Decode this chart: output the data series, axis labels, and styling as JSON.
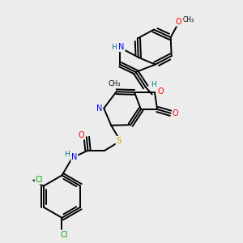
{
  "background_color": "#ececec",
  "figure_size": [
    3.0,
    3.0
  ],
  "dpi": 100,
  "atom_colors": {
    "N": "#0000ff",
    "O": "#ff0000",
    "S": "#ccaa00",
    "Cl": "#00aa00",
    "NH": "#008080",
    "H": "#008080",
    "C": "#000000"
  },
  "bond_color": "#000000",
  "bond_width": 1.4,
  "font_size_atom": 7.0,
  "font_size_small": 6.0
}
